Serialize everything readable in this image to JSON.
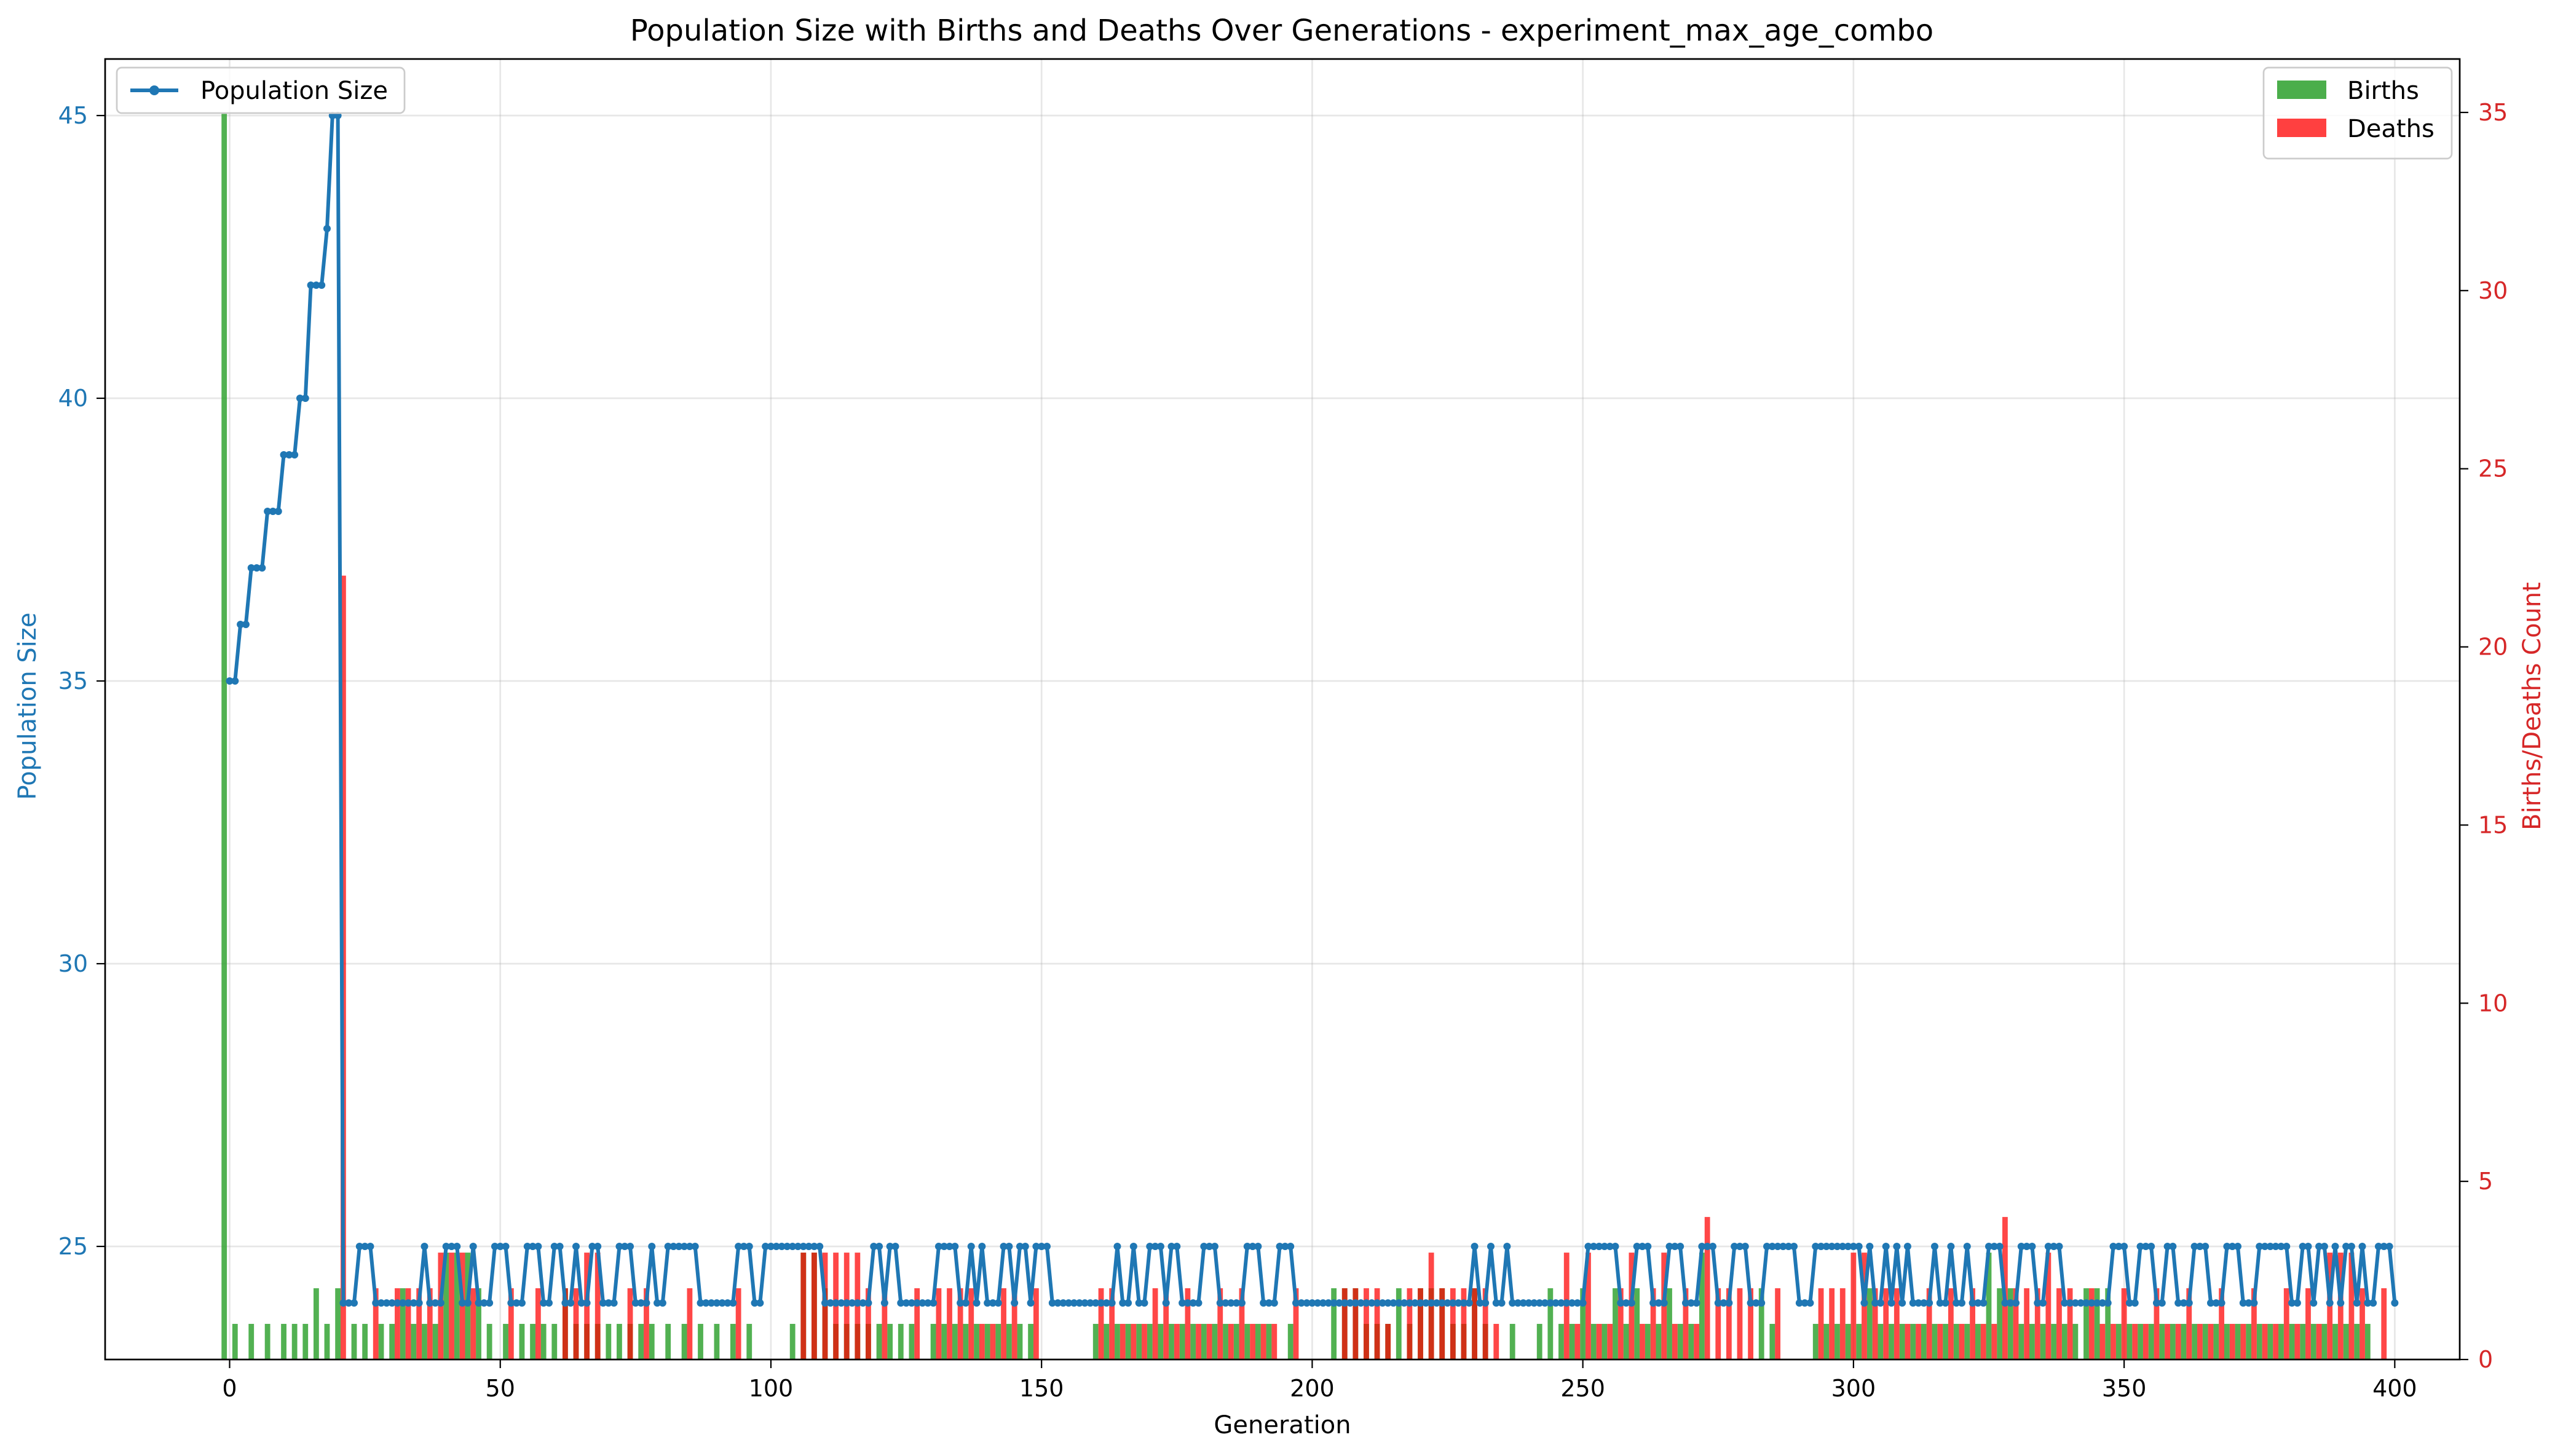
{
  "chart_data": {
    "type": "line+bar",
    "title": "Population Size with Births and Deaths Over Generations - experiment_max_age_combo",
    "xlabel": "Generation",
    "ylabel_left": "Population Size",
    "ylabel_right": "Births/Deaths Count",
    "xlim": [
      -23,
      412
    ],
    "ylim_left": [
      23,
      46
    ],
    "ylim_right": [
      0,
      36.5
    ],
    "xticks": [
      0,
      50,
      100,
      150,
      200,
      250,
      300,
      350,
      400
    ],
    "yticks_left": [
      25,
      30,
      35,
      40,
      45
    ],
    "yticks_right": [
      0,
      5,
      10,
      15,
      20,
      25,
      30,
      35
    ],
    "grid": true,
    "legend_left_position": "upper-left",
    "legend_right_position": "upper-right",
    "colors": {
      "population": "#1f77b4",
      "births": "#2ca02c",
      "deaths": "#ff0000",
      "left_axis": "#1f77b4",
      "right_axis": "#d62728"
    },
    "series": [
      {
        "name": "Population Size",
        "kind": "line",
        "x_start": 0,
        "values": [
          35,
          35,
          36,
          36,
          37,
          37,
          37,
          38,
          38,
          38,
          39,
          39,
          39,
          40,
          40,
          42,
          42,
          42,
          43,
          45,
          45,
          24,
          24,
          24,
          25,
          25,
          25,
          24,
          24,
          24,
          24,
          24,
          24,
          24,
          24,
          24,
          25,
          24,
          24,
          24,
          25,
          25,
          25,
          24,
          24,
          25,
          24,
          24,
          24,
          25,
          25,
          25,
          24,
          24,
          24,
          25,
          25,
          25,
          24,
          24,
          25,
          25,
          24,
          24,
          25,
          24,
          24,
          25,
          25,
          24,
          24,
          24,
          25,
          25,
          25,
          24,
          24,
          24,
          25,
          24,
          24,
          25,
          25,
          25,
          25,
          25,
          25,
          24,
          24,
          24,
          24,
          24,
          24,
          24,
          25,
          25,
          25,
          24,
          24,
          25,
          25,
          25,
          25,
          25,
          25,
          25,
          25,
          25,
          25,
          25,
          24,
          24,
          24,
          24,
          24,
          24,
          24,
          24,
          24,
          25,
          25,
          24,
          25,
          25,
          24,
          24,
          24,
          24,
          24,
          24,
          24,
          25,
          25,
          25,
          25,
          24,
          24,
          25,
          24,
          25,
          24,
          24,
          24,
          25,
          25,
          24,
          25,
          25,
          24,
          25,
          25,
          25,
          24,
          24,
          24,
          24,
          24,
          24,
          24,
          24,
          24,
          24,
          24,
          24,
          25,
          24,
          24,
          25,
          24,
          24,
          25,
          25,
          25,
          24,
          25,
          25,
          24,
          24,
          24,
          24,
          25,
          25,
          25,
          24,
          24,
          24,
          24,
          24,
          25,
          25,
          25,
          24,
          24,
          24,
          25,
          25,
          25,
          24,
          24,
          24,
          24,
          24,
          24,
          24,
          24,
          24,
          24,
          24,
          24,
          24,
          24,
          24,
          24,
          24,
          24,
          24,
          24,
          24,
          24,
          24,
          24,
          24,
          24,
          24,
          24,
          24,
          24,
          24,
          24,
          24,
          25,
          24,
          24,
          25,
          24,
          24,
          25,
          24,
          24,
          24,
          24,
          24,
          24,
          24,
          24,
          24,
          24,
          24,
          24,
          24,
          24,
          25,
          25,
          25,
          25,
          25,
          25,
          24,
          24,
          24,
          25,
          25,
          25,
          24,
          24,
          24,
          25,
          25,
          25,
          24,
          24,
          24,
          25,
          25,
          25,
          24,
          24,
          24,
          25,
          25,
          25,
          24,
          24,
          24,
          25,
          25,
          25,
          25,
          25,
          25,
          24,
          24,
          24,
          25,
          25,
          25,
          25,
          25,
          25,
          25,
          25,
          25,
          24,
          25,
          24,
          24,
          25,
          24,
          25,
          24,
          25,
          24,
          24,
          24,
          24,
          25,
          24,
          24,
          25,
          24,
          24,
          25,
          24,
          24,
          24,
          25,
          25,
          25,
          24,
          24,
          24,
          25,
          25,
          25,
          24,
          24,
          25,
          25,
          25,
          24,
          24,
          24,
          24,
          24,
          24,
          24,
          24,
          24,
          25,
          25,
          25,
          24,
          24,
          25,
          25,
          25,
          24,
          24,
          25,
          25,
          24,
          24,
          24,
          25,
          25,
          25,
          24,
          24,
          24,
          25,
          25,
          25,
          24,
          24,
          24,
          25,
          25,
          25,
          25,
          25,
          25,
          24,
          24,
          25,
          25,
          24,
          25,
          25,
          24,
          25,
          24,
          25,
          25,
          24,
          25,
          24,
          24,
          25,
          25,
          25,
          24
        ]
      },
      {
        "name": "Births",
        "kind": "bar",
        "x": [
          -1,
          1,
          4,
          7,
          10,
          12,
          14,
          16,
          18,
          20,
          23,
          25,
          28,
          30,
          32,
          34,
          36,
          38,
          40,
          42,
          44,
          46,
          48,
          51,
          54,
          56,
          58,
          60,
          62,
          64,
          66,
          68,
          70,
          72,
          74,
          76,
          78,
          81,
          84,
          87,
          90,
          93,
          96,
          104,
          106,
          108,
          110,
          112,
          114,
          116,
          118,
          120,
          122,
          124,
          126,
          130,
          132,
          134,
          136,
          138,
          140,
          142,
          144,
          146,
          148,
          160,
          162,
          164,
          166,
          168,
          170,
          172,
          174,
          176,
          178,
          180,
          182,
          184,
          186,
          188,
          190,
          192,
          196,
          204,
          206,
          208,
          210,
          212,
          214,
          216,
          218,
          220,
          222,
          224,
          226,
          228,
          230,
          232,
          237,
          242,
          244,
          246,
          248,
          250,
          252,
          254,
          256,
          258,
          260,
          262,
          264,
          266,
          268,
          270,
          272,
          283,
          285,
          293,
          295,
          297,
          299,
          301,
          303,
          305,
          307,
          309,
          311,
          313,
          315,
          317,
          319,
          321,
          323,
          325,
          327,
          329,
          331,
          333,
          335,
          337,
          339,
          341,
          343,
          345,
          347,
          349,
          351,
          353,
          355,
          357,
          359,
          361,
          363,
          365,
          367,
          369,
          371,
          373,
          375,
          377,
          379,
          381,
          383,
          385,
          387,
          389,
          391,
          393,
          395
        ],
        "values": [
          35,
          1,
          1,
          1,
          1,
          1,
          1,
          2,
          1,
          2,
          1,
          1,
          1,
          1,
          2,
          1,
          1,
          1,
          3,
          3,
          3,
          2,
          1,
          1,
          1,
          1,
          1,
          1,
          2,
          1,
          1,
          1,
          1,
          1,
          1,
          1,
          1,
          1,
          1,
          1,
          1,
          1,
          1,
          1,
          3,
          3,
          2,
          1,
          1,
          1,
          1,
          1,
          1,
          1,
          1,
          1,
          1,
          1,
          1,
          1,
          1,
          1,
          1,
          1,
          1,
          1,
          1,
          1,
          1,
          1,
          1,
          1,
          1,
          1,
          1,
          1,
          1,
          1,
          1,
          1,
          1,
          1,
          1,
          2,
          2,
          2,
          1,
          1,
          1,
          2,
          1,
          2,
          2,
          2,
          1,
          1,
          2,
          1,
          1,
          1,
          2,
          1,
          1,
          2,
          1,
          1,
          2,
          1,
          2,
          1,
          1,
          2,
          1,
          1,
          3,
          2,
          1,
          1,
          1,
          1,
          1,
          1,
          2,
          1,
          1,
          1,
          1,
          1,
          1,
          1,
          1,
          1,
          1,
          3,
          2,
          2,
          1,
          1,
          1,
          1,
          1,
          1,
          2,
          2,
          2,
          1,
          1,
          1,
          1,
          1,
          1,
          1,
          1,
          1,
          1,
          1,
          1,
          1,
          1,
          1,
          1,
          1,
          1,
          1,
          1,
          1,
          1,
          1,
          1
        ]
      },
      {
        "name": "Deaths",
        "kind": "bar",
        "x": [
          21,
          27,
          31,
          33,
          35,
          37,
          39,
          41,
          43,
          45,
          52,
          57,
          62,
          64,
          66,
          68,
          74,
          77,
          85,
          94,
          106,
          108,
          110,
          112,
          114,
          116,
          118,
          121,
          127,
          131,
          133,
          135,
          137,
          139,
          141,
          143,
          145,
          149,
          161,
          163,
          165,
          167,
          169,
          171,
          173,
          175,
          177,
          179,
          181,
          183,
          185,
          187,
          189,
          191,
          193,
          197,
          206,
          208,
          210,
          212,
          214,
          218,
          220,
          222,
          224,
          226,
          228,
          230,
          232,
          234,
          247,
          249,
          251,
          253,
          255,
          257,
          259,
          261,
          263,
          265,
          267,
          269,
          271,
          273,
          275,
          277,
          279,
          281,
          286,
          294,
          296,
          298,
          300,
          302,
          304,
          306,
          308,
          310,
          312,
          314,
          316,
          318,
          320,
          322,
          324,
          326,
          328,
          330,
          332,
          334,
          336,
          338,
          340,
          344,
          346,
          348,
          350,
          352,
          354,
          356,
          358,
          360,
          362,
          364,
          366,
          368,
          370,
          372,
          374,
          376,
          378,
          380,
          382,
          384,
          386,
          388,
          390,
          392,
          394,
          398
        ],
        "values": [
          22,
          2,
          2,
          2,
          2,
          2,
          3,
          3,
          3,
          2,
          2,
          2,
          2,
          2,
          3,
          3,
          2,
          2,
          2,
          2,
          3,
          3,
          3,
          3,
          3,
          3,
          2,
          2,
          2,
          2,
          2,
          2,
          2,
          1,
          1,
          2,
          2,
          2,
          2,
          2,
          1,
          1,
          1,
          2,
          2,
          1,
          2,
          1,
          1,
          2,
          1,
          2,
          1,
          1,
          1,
          2,
          2,
          2,
          2,
          2,
          1,
          2,
          2,
          3,
          2,
          2,
          2,
          2,
          2,
          1,
          3,
          1,
          3,
          1,
          1,
          2,
          3,
          1,
          2,
          3,
          1,
          2,
          1,
          4,
          2,
          2,
          2,
          2,
          2,
          2,
          2,
          2,
          3,
          3,
          2,
          2,
          2,
          1,
          1,
          2,
          1,
          2,
          1,
          2,
          1,
          1,
          4,
          2,
          2,
          2,
          3,
          2,
          2,
          2,
          1,
          1,
          2,
          1,
          1,
          2,
          1,
          1,
          2,
          1,
          1,
          2,
          1,
          1,
          2,
          1,
          1,
          2,
          1,
          2,
          1,
          3,
          3,
          3,
          2,
          2
        ]
      }
    ]
  }
}
